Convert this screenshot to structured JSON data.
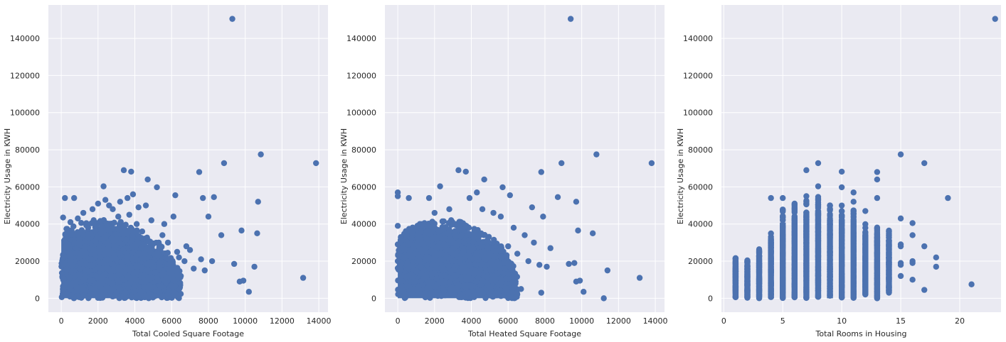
{
  "chart_data": [
    {
      "type": "scatter",
      "xlabel": "Total Cooled Square Footage",
      "ylabel": "Electricity Usage in KWH",
      "xlim": [
        -700,
        14500
      ],
      "ylim": [
        -7500,
        158000
      ],
      "xticks": [
        0,
        2000,
        4000,
        6000,
        8000,
        10000,
        12000,
        14000
      ],
      "yticks": [
        0,
        20000,
        40000,
        60000,
        80000,
        100000,
        120000,
        140000
      ],
      "grid": true,
      "color": "#4c72b0",
      "points": [
        [
          9300,
          150500
        ],
        [
          10850,
          77500
        ],
        [
          13850,
          72800
        ],
        [
          8850,
          72800
        ],
        [
          3400,
          69000
        ],
        [
          3800,
          68200
        ],
        [
          7500,
          68000
        ],
        [
          4700,
          64000
        ],
        [
          2300,
          60300
        ],
        [
          5200,
          59800
        ],
        [
          10700,
          52000
        ],
        [
          6200,
          55500
        ],
        [
          8300,
          54500
        ],
        [
          7700,
          54000
        ],
        [
          200,
          54000
        ],
        [
          700,
          54000
        ],
        [
          8000,
          44000
        ],
        [
          9800,
          36500
        ],
        [
          10650,
          35000
        ],
        [
          8700,
          34000
        ],
        [
          9400,
          18500
        ],
        [
          10500,
          17000
        ],
        [
          9700,
          9000
        ],
        [
          9900,
          9500
        ],
        [
          10200,
          3500
        ],
        [
          13150,
          11000
        ],
        [
          7800,
          15000
        ],
        [
          6500,
          12000
        ],
        [
          7000,
          26000
        ],
        [
          6800,
          28000
        ],
        [
          5600,
          40000
        ],
        [
          6100,
          44000
        ],
        [
          5500,
          34000
        ],
        [
          6400,
          22000
        ],
        [
          5800,
          30000
        ],
        [
          4600,
          50000
        ],
        [
          4200,
          49000
        ],
        [
          3900,
          56000
        ],
        [
          3600,
          54000
        ],
        [
          3200,
          52000
        ],
        [
          2800,
          48000
        ],
        [
          2600,
          50000
        ],
        [
          2400,
          53000
        ],
        [
          2000,
          51000
        ],
        [
          1700,
          48000
        ],
        [
          1200,
          46000
        ],
        [
          900,
          43000
        ],
        [
          500,
          41000
        ],
        [
          100,
          43500
        ],
        [
          3100,
          44000
        ],
        [
          3700,
          45000
        ],
        [
          4100,
          40000
        ],
        [
          4400,
          36000
        ],
        [
          4900,
          42000
        ],
        [
          5300,
          30000
        ],
        [
          5700,
          24000
        ],
        [
          6000,
          18000
        ],
        [
          6300,
          25000
        ],
        [
          6700,
          20000
        ],
        [
          7200,
          16000
        ],
        [
          7600,
          21000
        ],
        [
          8200,
          20000
        ],
        [
          5100,
          14000
        ],
        [
          4800,
          10000
        ],
        [
          4500,
          6000
        ],
        [
          4000,
          4000
        ],
        [
          3500,
          3000
        ],
        [
          2000,
          2000
        ],
        [
          1500,
          500
        ]
      ],
      "cluster": {
        "x_max": [
          [
            0,
            36000
          ],
          [
            500,
            39000
          ],
          [
            1500,
            42000
          ],
          [
            2500,
            43000
          ],
          [
            3500,
            41000
          ],
          [
            4500,
            34000
          ],
          [
            5500,
            28000
          ],
          [
            6000,
            22000
          ],
          [
            6500,
            14000
          ]
        ],
        "y_min": 0
      }
    },
    {
      "type": "scatter",
      "xlabel": "Total Heated Square Footage",
      "ylabel": "Electricity Usage in KWH",
      "xlim": [
        -700,
        14500
      ],
      "ylim": [
        -7500,
        158000
      ],
      "xticks": [
        0,
        2000,
        4000,
        6000,
        8000,
        10000,
        12000,
        14000
      ],
      "yticks": [
        0,
        20000,
        40000,
        60000,
        80000,
        100000,
        120000,
        140000
      ],
      "grid": true,
      "color": "#4c72b0",
      "points": [
        [
          9400,
          150500
        ],
        [
          10800,
          77500
        ],
        [
          13800,
          72800
        ],
        [
          8900,
          72800
        ],
        [
          3300,
          69000
        ],
        [
          3700,
          68200
        ],
        [
          7800,
          68000
        ],
        [
          4700,
          64000
        ],
        [
          2300,
          60300
        ],
        [
          5700,
          59800
        ],
        [
          9700,
          52000
        ],
        [
          6100,
          55500
        ],
        [
          8700,
          54500
        ],
        [
          7300,
          49000
        ],
        [
          0,
          57000
        ],
        [
          0,
          55000
        ],
        [
          600,
          54000
        ],
        [
          1700,
          54000
        ],
        [
          7900,
          44000
        ],
        [
          9800,
          36500
        ],
        [
          10600,
          35000
        ],
        [
          8300,
          27000
        ],
        [
          9300,
          18500
        ],
        [
          9600,
          19000
        ],
        [
          9700,
          9000
        ],
        [
          9900,
          9500
        ],
        [
          10100,
          3500
        ],
        [
          11200,
          0
        ],
        [
          11400,
          15000
        ],
        [
          13150,
          11000
        ],
        [
          7800,
          3000
        ],
        [
          6700,
          5000
        ],
        [
          0,
          39000
        ],
        [
          0,
          29000
        ],
        [
          0,
          20000
        ],
        [
          4300,
          57000
        ],
        [
          3900,
          54000
        ],
        [
          4600,
          48000
        ],
        [
          5200,
          46000
        ],
        [
          5600,
          44000
        ],
        [
          2800,
          48000
        ],
        [
          2000,
          46000
        ],
        [
          1200,
          40000
        ],
        [
          500,
          36000
        ],
        [
          6300,
          38000
        ],
        [
          6900,
          34000
        ],
        [
          7400,
          30000
        ],
        [
          6000,
          28000
        ],
        [
          6500,
          24000
        ],
        [
          7100,
          20000
        ],
        [
          7700,
          18000
        ],
        [
          8100,
          17000
        ],
        [
          5800,
          16000
        ],
        [
          5300,
          10000
        ],
        [
          4900,
          7000
        ],
        [
          4400,
          4000
        ],
        [
          3800,
          3000
        ],
        [
          2500,
          2000
        ],
        [
          1500,
          500
        ]
      ],
      "cluster": {
        "x_max": [
          [
            0,
            35000
          ],
          [
            500,
            38000
          ],
          [
            1500,
            41000
          ],
          [
            2500,
            43000
          ],
          [
            3500,
            41000
          ],
          [
            4500,
            36000
          ],
          [
            5500,
            30000
          ],
          [
            6000,
            22000
          ],
          [
            6500,
            14000
          ]
        ],
        "y_min": 0
      }
    },
    {
      "type": "scatter",
      "xlabel": "Total Rooms in Housing",
      "ylabel": "Electricity Usage in KWH",
      "xlim": [
        -0.2,
        23.5
      ],
      "ylim": [
        -7500,
        158000
      ],
      "xticks": [
        0,
        5,
        10,
        15,
        20
      ],
      "yticks": [
        0,
        20000,
        40000,
        60000,
        80000,
        100000,
        120000,
        140000
      ],
      "grid": true,
      "color": "#4c72b0",
      "points": [
        [
          23,
          150500
        ],
        [
          15,
          77500
        ],
        [
          17,
          72800
        ],
        [
          8,
          72800
        ],
        [
          7,
          69000
        ],
        [
          10,
          68200
        ],
        [
          13,
          68000
        ],
        [
          13,
          64000
        ],
        [
          8,
          60300
        ],
        [
          10,
          59800
        ],
        [
          11,
          57000
        ],
        [
          19,
          54000
        ],
        [
          4,
          54000
        ],
        [
          5,
          54000
        ],
        [
          7,
          55000
        ],
        [
          12,
          47000
        ],
        [
          13,
          54000
        ],
        [
          15,
          43000
        ],
        [
          16,
          40500
        ],
        [
          16,
          34000
        ],
        [
          17,
          28000
        ],
        [
          18,
          22000
        ],
        [
          18,
          17000
        ],
        [
          16,
          20000
        ],
        [
          16,
          19000
        ],
        [
          16,
          10000
        ],
        [
          17,
          4500
        ],
        [
          21,
          7500
        ],
        [
          15,
          12000
        ],
        [
          15,
          18000
        ],
        [
          15,
          19000
        ],
        [
          15,
          28000
        ],
        [
          15,
          29000
        ],
        [
          14,
          36000
        ],
        [
          14,
          5000
        ],
        [
          14,
          3000
        ],
        [
          13,
          0
        ],
        [
          11,
          52000
        ],
        [
          9,
          50000
        ],
        [
          6,
          51000
        ]
      ],
      "columns": [
        [
          1,
          0,
          22000
        ],
        [
          2,
          0,
          21000
        ],
        [
          3,
          0,
          27000
        ],
        [
          4,
          0,
          37000
        ],
        [
          5,
          0,
          48000
        ],
        [
          6,
          0,
          51000
        ],
        [
          7,
          0,
          55000
        ],
        [
          8,
          0,
          55000
        ],
        [
          9,
          0,
          50000
        ],
        [
          10,
          0,
          50000
        ],
        [
          11,
          0,
          48000
        ],
        [
          12,
          2000,
          40000
        ],
        [
          13,
          0,
          40000
        ],
        [
          14,
          3000,
          37000
        ]
      ]
    }
  ]
}
